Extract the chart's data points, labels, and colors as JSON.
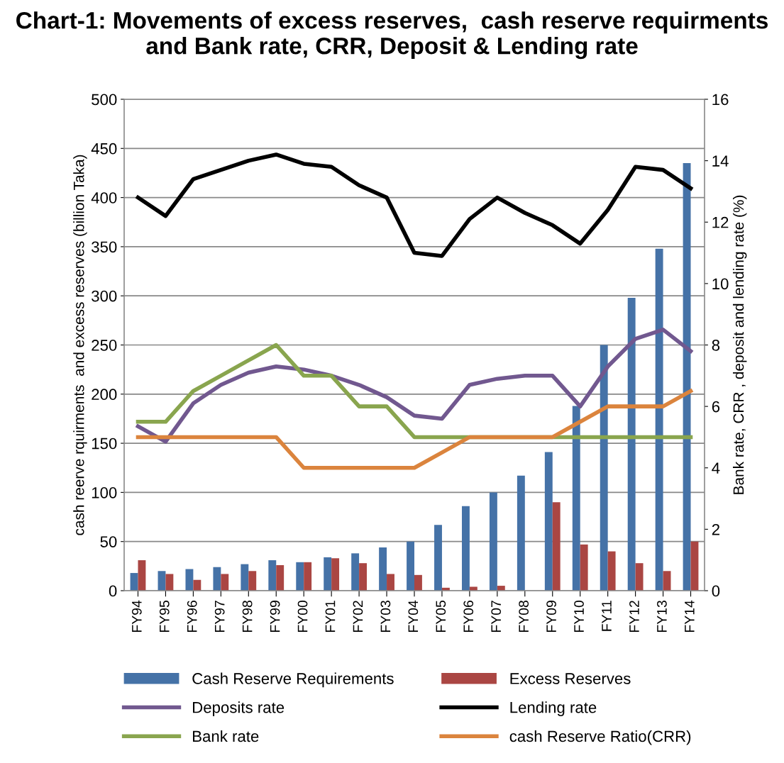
{
  "chart_data": {
    "type": "bar",
    "title": "Chart-1: Movements of excess reserves,  cash reserve requirments and Bank rate, CRR, Deposit & Lending rate",
    "categories": [
      "FY94",
      "FY95",
      "FY96",
      "FY97",
      "FY98",
      "FY99",
      "FY00",
      "FY01",
      "FY02",
      "FY03",
      "FY04",
      "FY05",
      "FY06",
      "FY07",
      "FY08",
      "FY09",
      "FY10",
      "FY11",
      "FY12",
      "FY13",
      "FY14"
    ],
    "series": [
      {
        "name": "Cash Reserve Requirements",
        "color": "#4572a7",
        "values": [
          18,
          20,
          22,
          24,
          27,
          31,
          29,
          34,
          38,
          44,
          50,
          67,
          86,
          100,
          117,
          141,
          188,
          250,
          298,
          348,
          435
        ]
      },
      {
        "name": "Excess Reserves",
        "color": "#aa4643",
        "values": [
          31,
          17,
          11,
          17,
          20,
          26,
          29,
          33,
          28,
          17,
          16,
          3,
          4,
          5,
          0,
          90,
          47,
          40,
          28,
          20,
          50
        ]
      },
      {
        "name": "Deposits rate",
        "type": "line",
        "axis": "y2",
        "color": "#71588f",
        "values": [
          5.35,
          4.85,
          6.1,
          6.7,
          7.1,
          7.3,
          7.2,
          7.0,
          6.7,
          6.3,
          5.7,
          5.6,
          6.7,
          6.9,
          7.0,
          7.0,
          6.0,
          7.3,
          8.2,
          8.5,
          7.8
        ]
      },
      {
        "name": "Lending rate",
        "type": "line",
        "axis": "y2",
        "color": "#000000",
        "values": [
          12.8,
          12.2,
          13.4,
          13.7,
          14.0,
          14.2,
          13.9,
          13.8,
          13.2,
          12.8,
          11.0,
          10.9,
          12.1,
          12.8,
          12.3,
          11.9,
          11.3,
          12.4,
          13.8,
          13.7,
          13.1
        ]
      },
      {
        "name": "Bank rate",
        "type": "line",
        "axis": "y2",
        "color": "#89a54e",
        "values": [
          5.5,
          5.5,
          6.5,
          7,
          7.5,
          8,
          7,
          7,
          6,
          6,
          5,
          5,
          5,
          5,
          5,
          5,
          5,
          5,
          5,
          5,
          5
        ]
      },
      {
        "name": "cash Reserve Ratio(CRR)",
        "type": "line",
        "axis": "y2",
        "color": "#db843d",
        "values": [
          5,
          5,
          5,
          5,
          5,
          5,
          4,
          4,
          4,
          4,
          4,
          4.5,
          5,
          5,
          5,
          5,
          5.5,
          6,
          6,
          6,
          6.5
        ]
      }
    ],
    "ylabel": "cash reerve rquirments  and excess reserves (billion Taka)",
    "y2label": "Bank rate, CRR , deposit and lending rate (%)",
    "ylim": [
      0,
      500
    ],
    "yticks": [
      0,
      50,
      100,
      150,
      200,
      250,
      300,
      350,
      400,
      450,
      500
    ],
    "y2lim": [
      0,
      16
    ],
    "y2ticks": [
      0,
      2,
      4,
      6,
      8,
      10,
      12,
      14,
      16
    ],
    "grid": "y",
    "legend": "bottom",
    "line_style": "solid",
    "marker": "none"
  }
}
